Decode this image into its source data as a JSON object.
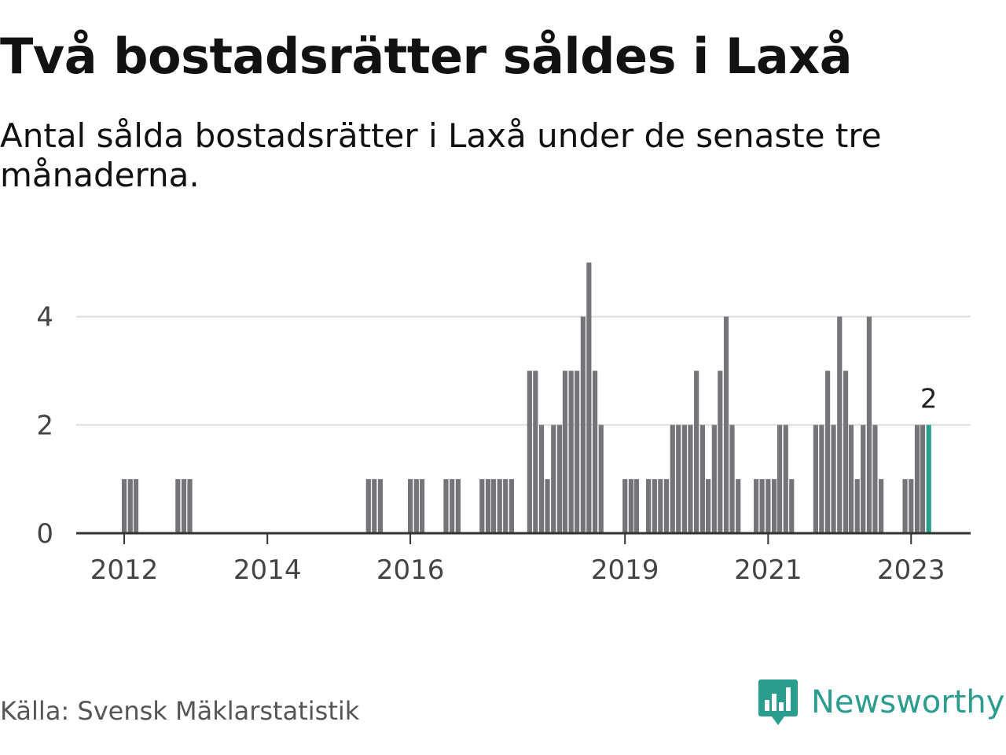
{
  "title": "Två bostadsrätter såldes i Laxå",
  "subtitle": "Antal sålda bostadsrätter i Laxå under de senaste tre månaderna.",
  "source": "Källa: Svensk Mäklarstatistik",
  "logo": {
    "name": "Newsworthy",
    "icon": "bar-chart-speech-bubble-icon"
  },
  "colors": {
    "bar": "#747479",
    "highlight": "#2a9d8f",
    "grid": "#dddddd",
    "axis": "#333333"
  },
  "chart_data": {
    "type": "bar",
    "x": [
      "2012-01-01",
      "2012-02-01",
      "2012-03-01",
      "2012-10-01",
      "2012-11-01",
      "2012-12-01",
      "2015-06-01",
      "2015-07-01",
      "2015-08-01",
      "2016-01-01",
      "2016-02-01",
      "2016-03-01",
      "2016-07-01",
      "2016-08-01",
      "2016-09-01",
      "2017-01-01",
      "2017-02-01",
      "2017-03-01",
      "2017-04-01",
      "2017-05-01",
      "2017-06-01",
      "2017-09-01",
      "2017-10-01",
      "2017-11-01",
      "2017-12-01",
      "2018-01-01",
      "2018-02-01",
      "2018-03-01",
      "2018-04-01",
      "2018-05-01",
      "2018-06-01",
      "2018-07-01",
      "2018-08-01",
      "2018-09-01",
      "2018-10-01",
      "2019-01-01",
      "2019-02-01",
      "2019-03-01",
      "2019-05-01",
      "2019-06-01",
      "2019-07-01",
      "2019-08-01",
      "2019-09-01",
      "2019-10-01",
      "2019-11-01",
      "2019-12-01",
      "2020-01-01",
      "2020-02-01",
      "2020-03-01",
      "2020-04-01",
      "2020-05-01",
      "2020-06-01",
      "2020-07-01",
      "2020-08-01",
      "2020-09-01",
      "2020-11-01",
      "2020-12-01",
      "2021-01-01",
      "2021-02-01",
      "2021-03-01",
      "2021-04-01",
      "2021-05-01",
      "2021-09-01",
      "2021-10-01",
      "2021-11-01",
      "2021-12-01",
      "2022-01-01",
      "2022-02-01",
      "2022-03-01",
      "2022-04-01",
      "2022-05-01",
      "2022-06-01",
      "2022-07-01",
      "2022-08-01",
      "2022-09-01",
      "2022-12-01",
      "2023-01-01",
      "2023-02-01",
      "2023-03-01",
      "2023-04-01"
    ],
    "values": [
      1,
      1,
      1,
      1,
      1,
      1,
      1,
      1,
      1,
      1,
      1,
      1,
      1,
      1,
      1,
      1,
      1,
      1,
      1,
      1,
      1,
      3,
      3,
      2,
      1,
      2,
      2,
      3,
      3,
      3,
      4,
      5,
      3,
      2,
      0,
      1,
      1,
      1,
      1,
      1,
      1,
      1,
      2,
      2,
      2,
      2,
      3,
      2,
      1,
      2,
      3,
      4,
      2,
      1,
      0,
      1,
      1,
      1,
      1,
      2,
      2,
      1,
      2,
      2,
      3,
      2,
      4,
      3,
      2,
      1,
      2,
      4,
      2,
      1,
      0,
      1,
      1,
      2,
      2,
      2
    ],
    "highlight_last": true,
    "last_value_label": "2",
    "xlim": [
      "2011-05-01",
      "2023-11-01"
    ],
    "ylim": [
      0,
      5.2
    ],
    "yticks": [
      0,
      2,
      4
    ],
    "ytick_labels": [
      "0",
      "2",
      "4"
    ],
    "xticks": [
      "2012-01-01",
      "2014-01-01",
      "2016-01-01",
      "2019-01-01",
      "2021-01-01",
      "2023-01-01"
    ],
    "xtick_labels": [
      "2012",
      "2014",
      "2016",
      "2019",
      "2021",
      "2023"
    ],
    "grid": true,
    "xlabel": "",
    "ylabel": ""
  }
}
